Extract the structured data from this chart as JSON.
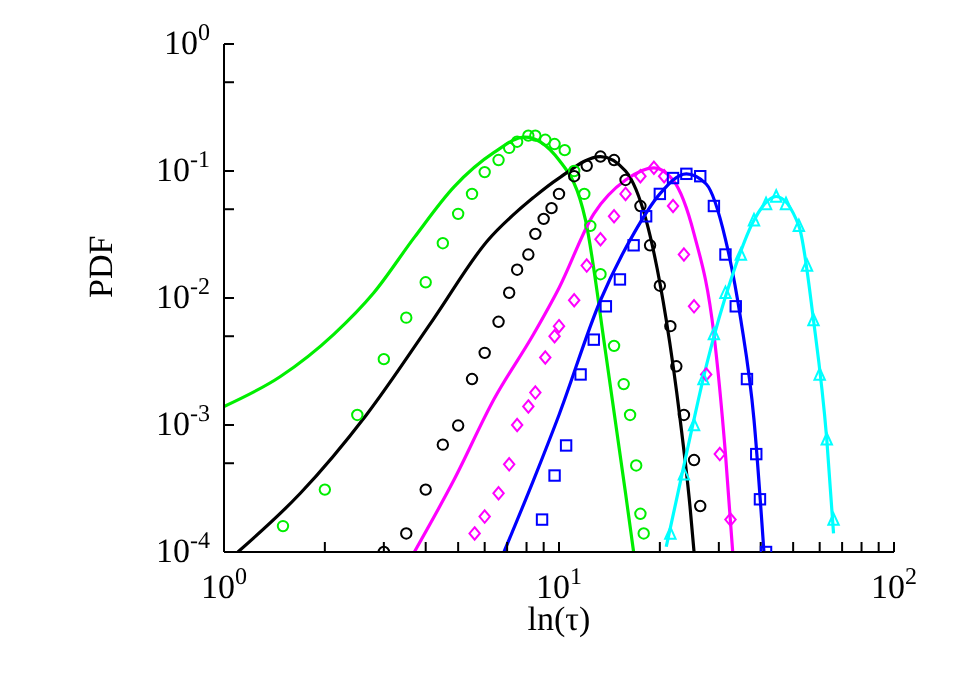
{
  "chart_data": {
    "type": "line",
    "xlabel": "ln(τ)",
    "ylabel": "PDF",
    "log": "xy",
    "xlim": [
      1,
      100
    ],
    "ylim": [
      0.0001,
      1
    ],
    "xticks": [
      {
        "value": 1,
        "label": "10$^{0}$"
      },
      {
        "value": 2,
        "label": null
      },
      {
        "value": 3,
        "label": null
      },
      {
        "value": 4,
        "label": null
      },
      {
        "value": 5,
        "label": null
      },
      {
        "value": 6,
        "label": null
      },
      {
        "value": 7,
        "label": null
      },
      {
        "value": 8,
        "label": null
      },
      {
        "value": 9,
        "label": null
      },
      {
        "value": 10,
        "label": "10$^{1}$"
      },
      {
        "value": 20,
        "label": null
      },
      {
        "value": 30,
        "label": null
      },
      {
        "value": 40,
        "label": null
      },
      {
        "value": 50,
        "label": null
      },
      {
        "value": 60,
        "label": null
      },
      {
        "value": 70,
        "label": null
      },
      {
        "value": 80,
        "label": null
      },
      {
        "value": 90,
        "label": null
      },
      {
        "value": 100,
        "label": "10$^{2}$"
      }
    ],
    "yticks": [
      {
        "value": 0.0001,
        "label": "10$^{-4}$"
      },
      {
        "value": 0.0005,
        "label": null
      },
      {
        "value": 0.001,
        "label": "10$^{-3}$"
      },
      {
        "value": 0.005,
        "label": null
      },
      {
        "value": 0.01,
        "label": "10$^{-2}$"
      },
      {
        "value": 0.05,
        "label": null
      },
      {
        "value": 0.1,
        "label": "10$^{-1}$"
      },
      {
        "value": 0.5,
        "label": null
      },
      {
        "value": 1,
        "label": "10$^{0}$"
      }
    ],
    "series": [
      {
        "color": "#00ee00",
        "x": [
          1,
          1.47,
          2.13,
          2.8,
          3.7,
          4.86,
          6.4,
          7.9,
          10,
          12,
          13.8,
          15.8,
          16.7
        ],
        "values": [
          0.0014,
          0.0024,
          0.0052,
          0.011,
          0.03,
          0.075,
          0.14,
          0.185,
          0.122,
          0.041,
          0.0036,
          0.00029,
          0.0001
        ]
      },
      {
        "type": "scatter",
        "marker": "circle",
        "color": "#00ee00",
        "x": [
          1.5,
          2,
          2.5,
          3,
          3.5,
          4,
          4.5,
          5,
          5.5,
          6,
          6.6,
          7.1,
          7.5,
          8.1,
          8.5,
          9.1,
          9.7,
          10.4,
          11.1,
          11.9,
          12.4,
          13.3,
          14.6,
          15.6,
          16.3,
          17,
          17.5,
          17.9
        ],
        "values": [
          0.00016,
          0.00031,
          0.0012,
          0.0033,
          0.007,
          0.0133,
          0.027,
          0.046,
          0.066,
          0.098,
          0.122,
          0.152,
          0.17,
          0.19,
          0.19,
          0.176,
          0.163,
          0.146,
          0.1,
          0.066,
          0.037,
          0.0154,
          0.0042,
          0.0021,
          0.0012,
          0.00048,
          0.0002,
          0.00014
        ]
      },
      {
        "color": "#000000",
        "x": [
          1.1,
          1.69,
          2.66,
          4.2,
          6.1,
          8.4,
          10,
          13.3,
          15.8,
          18.2,
          20.9,
          23,
          24.6,
          25.3
        ],
        "values": [
          0.0001,
          0.00029,
          0.0012,
          0.0067,
          0.028,
          0.062,
          0.088,
          0.13,
          0.1,
          0.041,
          0.0067,
          0.0011,
          0.00023,
          0.0001
        ]
      },
      {
        "type": "scatter",
        "marker": "circle",
        "color": "#000000",
        "x": [
          3,
          3.5,
          4,
          4.5,
          5,
          5.5,
          6,
          6.6,
          7.1,
          7.5,
          8.1,
          8.5,
          9,
          9.5,
          10,
          11.1,
          12.1,
          13.3,
          14.6,
          15.8,
          17.5,
          18.7,
          20,
          21.5,
          22.4,
          23.6,
          25.3,
          26.4
        ],
        "values": [
          0.0001,
          0.00014,
          0.00031,
          0.0007,
          0.00099,
          0.0023,
          0.0037,
          0.0065,
          0.011,
          0.0167,
          0.022,
          0.032,
          0.042,
          0.051,
          0.066,
          0.091,
          0.11,
          0.13,
          0.122,
          0.085,
          0.053,
          0.026,
          0.0125,
          0.006,
          0.0029,
          0.0012,
          0.00053,
          0.00023
        ]
      },
      {
        "color": "#ff00ff",
        "x": [
          3.7,
          4.86,
          6.4,
          8.4,
          10,
          12.7,
          15.8,
          19.2,
          21.9,
          25.3,
          29,
          31.4,
          33
        ],
        "values": [
          0.0001,
          0.00037,
          0.0016,
          0.0052,
          0.012,
          0.046,
          0.085,
          0.106,
          0.085,
          0.032,
          0.0052,
          0.00059,
          0.0001
        ]
      },
      {
        "type": "scatter",
        "marker": "diamond",
        "color": "#ff00ff",
        "x": [
          5.6,
          6,
          6.6,
          7.1,
          7.5,
          8.1,
          8.5,
          9.1,
          9.7,
          10,
          11.1,
          12.1,
          13.3,
          14.6,
          15.8,
          17.5,
          19.2,
          20.6,
          21.9,
          23.6,
          25.3,
          27.5,
          30.2,
          32.5
        ],
        "values": [
          0.00014,
          0.00019,
          0.00029,
          0.00049,
          0.001,
          0.0014,
          0.0018,
          0.0034,
          0.005,
          0.006,
          0.0096,
          0.018,
          0.029,
          0.044,
          0.066,
          0.091,
          0.106,
          0.091,
          0.053,
          0.022,
          0.0086,
          0.0025,
          0.00059,
          0.00018
        ]
      },
      {
        "color": "#0000ff",
        "x": [
          6.85,
          8.4,
          10,
          13.3,
          16.7,
          20,
          24,
          27.5,
          31.4,
          34.9,
          38.2,
          40.9
        ],
        "values": [
          0.0001,
          0.00037,
          0.0012,
          0.0096,
          0.032,
          0.066,
          0.095,
          0.079,
          0.029,
          0.0067,
          0.0011,
          0.0001
        ]
      },
      {
        "type": "scatter",
        "marker": "square",
        "color": "#0000ff",
        "x": [
          8.9,
          9.7,
          10.5,
          11.6,
          12.7,
          13.8,
          15.2,
          16.7,
          18.2,
          20,
          21.9,
          24,
          26.4,
          29,
          31.4,
          33.7,
          36.4,
          38.8,
          39.8,
          41.5
        ],
        "values": [
          0.00018,
          0.0004,
          0.00069,
          0.0025,
          0.0047,
          0.0086,
          0.014,
          0.026,
          0.044,
          0.066,
          0.088,
          0.095,
          0.091,
          0.053,
          0.022,
          0.0086,
          0.0023,
          0.00059,
          0.00026,
          0.0001
        ]
      },
      {
        "color": "#00ffff",
        "x": [
          20.9,
          24,
          27.5,
          33,
          38.2,
          44.5,
          52,
          57.5,
          63,
          66
        ],
        "values": [
          0.00011,
          0.00059,
          0.0029,
          0.0154,
          0.041,
          0.063,
          0.037,
          0.0067,
          0.00077,
          0.00014
        ]
      },
      {
        "type": "scatter",
        "marker": "triangle",
        "color": "#00ffff",
        "x": [
          21.5,
          23.6,
          25.3,
          27,
          29,
          31.4,
          34.9,
          38.2,
          41.5,
          44.5,
          47.6,
          52,
          55,
          57.5,
          60,
          63,
          66
        ],
        "values": [
          0.00014,
          0.00041,
          0.001,
          0.0023,
          0.0052,
          0.011,
          0.022,
          0.041,
          0.055,
          0.063,
          0.055,
          0.037,
          0.018,
          0.0067,
          0.0025,
          0.00077,
          0.00018
        ]
      }
    ]
  }
}
